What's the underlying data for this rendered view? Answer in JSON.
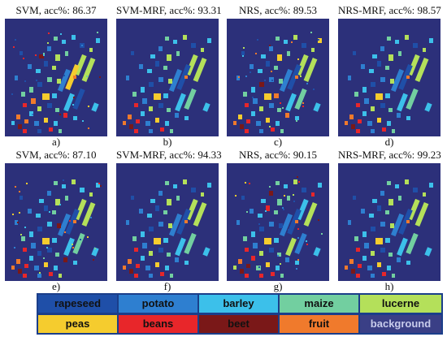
{
  "panels": [
    {
      "title": "SVM, acc%: 86.37",
      "caption": "a)",
      "variant": "noisy"
    },
    {
      "title": "SVM-MRF, acc%: 93.31",
      "caption": "b)",
      "variant": "smooth"
    },
    {
      "title": "NRS, acc%: 89.53",
      "caption": "c)",
      "variant": "noisy"
    },
    {
      "title": "NRS-MRF, acc%: 98.57",
      "caption": "d)",
      "variant": "smooth"
    },
    {
      "title": "SVM, acc%: 87.10",
      "caption": "e)",
      "variant": "noisy"
    },
    {
      "title": "SVM-MRF, acc%: 94.33",
      "caption": "f)",
      "variant": "smooth"
    },
    {
      "title": "NRS, acc%: 90.15",
      "caption": "g)",
      "variant": "noisy"
    },
    {
      "title": "NRS-MRF, acc%: 99.23",
      "caption": "h)",
      "variant": "smooth"
    }
  ],
  "legend": [
    {
      "label": "rapeseed",
      "color": "#1f4fa8",
      "text_color": "#111111"
    },
    {
      "label": "potato",
      "color": "#2e7fd0",
      "text_color": "#111111"
    },
    {
      "label": "barley",
      "color": "#3cc0ea",
      "text_color": "#111111"
    },
    {
      "label": "maize",
      "color": "#72cfa0",
      "text_color": "#111111"
    },
    {
      "label": "lucerne",
      "color": "#b4e05a",
      "text_color": "#111111"
    },
    {
      "label": "peas",
      "color": "#f5cc2e",
      "text_color": "#111111"
    },
    {
      "label": "beans",
      "color": "#e8262a",
      "text_color": "#111111"
    },
    {
      "label": "beet",
      "color": "#7a1818",
      "text_color": "#111111"
    },
    {
      "label": "fruit",
      "color": "#f07a2c",
      "text_color": "#111111"
    },
    {
      "label": "background",
      "color": "#3a3f86",
      "text_color": "#c8ccec"
    }
  ]
}
